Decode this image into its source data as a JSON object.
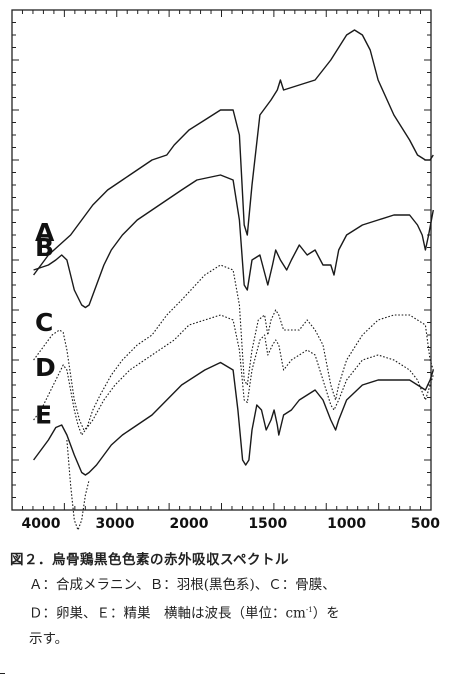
{
  "chart_data": {
    "type": "line",
    "xlabel": "",
    "ylabel": "",
    "xlim": [
      4100,
      430
    ],
    "x_ticks": [
      4000,
      3000,
      2000,
      1500,
      1000,
      500
    ],
    "x_tick_labels": [
      "4000",
      "3000",
      "2000",
      "1500",
      "1000",
      "500"
    ],
    "grid": false,
    "series": [
      {
        "name": "A",
        "style": "solid",
        "points": [
          [
            4100,
            47
          ],
          [
            3900,
            51
          ],
          [
            3750,
            53
          ],
          [
            3600,
            55
          ],
          [
            3450,
            58
          ],
          [
            3300,
            61
          ],
          [
            3100,
            64
          ],
          [
            2900,
            66
          ],
          [
            2700,
            68
          ],
          [
            2500,
            70
          ],
          [
            2300,
            71
          ],
          [
            2200,
            73
          ],
          [
            2000,
            76
          ],
          [
            1900,
            78
          ],
          [
            1800,
            80
          ],
          [
            1720,
            80
          ],
          [
            1680,
            75
          ],
          [
            1650,
            57
          ],
          [
            1630,
            55
          ],
          [
            1600,
            65
          ],
          [
            1550,
            79
          ],
          [
            1480,
            82
          ],
          [
            1440,
            84
          ],
          [
            1420,
            86
          ],
          [
            1400,
            84
          ],
          [
            1300,
            85
          ],
          [
            1200,
            86
          ],
          [
            1100,
            90
          ],
          [
            1000,
            95
          ],
          [
            950,
            96
          ],
          [
            900,
            95
          ],
          [
            850,
            92
          ],
          [
            800,
            86
          ],
          [
            700,
            79
          ],
          [
            600,
            74
          ],
          [
            550,
            71
          ],
          [
            500,
            70
          ],
          [
            470,
            70
          ],
          [
            450,
            71
          ]
        ]
      },
      {
        "name": "B",
        "style": "solid",
        "points": [
          [
            4100,
            48
          ],
          [
            3900,
            49
          ],
          [
            3800,
            50
          ],
          [
            3720,
            51
          ],
          [
            3650,
            50
          ],
          [
            3550,
            44
          ],
          [
            3450,
            41
          ],
          [
            3400,
            40.5
          ],
          [
            3350,
            41
          ],
          [
            3250,
            45
          ],
          [
            3150,
            49
          ],
          [
            3050,
            52
          ],
          [
            2900,
            55
          ],
          [
            2700,
            58
          ],
          [
            2500,
            60
          ],
          [
            2300,
            62
          ],
          [
            2100,
            64
          ],
          [
            1950,
            66
          ],
          [
            1800,
            67
          ],
          [
            1720,
            66
          ],
          [
            1680,
            58
          ],
          [
            1650,
            45
          ],
          [
            1630,
            44
          ],
          [
            1600,
            50
          ],
          [
            1550,
            51
          ],
          [
            1500,
            45
          ],
          [
            1470,
            49
          ],
          [
            1450,
            52
          ],
          [
            1420,
            50
          ],
          [
            1380,
            48
          ],
          [
            1350,
            50
          ],
          [
            1300,
            53
          ],
          [
            1250,
            51
          ],
          [
            1200,
            52
          ],
          [
            1150,
            49
          ],
          [
            1100,
            49
          ],
          [
            1080,
            47
          ],
          [
            1050,
            52
          ],
          [
            1000,
            55
          ],
          [
            900,
            57
          ],
          [
            800,
            58
          ],
          [
            700,
            59
          ],
          [
            600,
            59
          ],
          [
            550,
            57
          ],
          [
            520,
            55
          ],
          [
            500,
            52
          ],
          [
            480,
            55
          ],
          [
            450,
            60
          ]
        ]
      },
      {
        "name": "C",
        "style": "dotted",
        "points": [
          [
            4100,
            30
          ],
          [
            3950,
            33
          ],
          [
            3850,
            35
          ],
          [
            3750,
            36
          ],
          [
            3700,
            35.5
          ],
          [
            3650,
            32
          ],
          [
            3550,
            22
          ],
          [
            3480,
            18
          ],
          [
            3420,
            16
          ],
          [
            3380,
            16.5
          ],
          [
            3300,
            20
          ],
          [
            3200,
            23
          ],
          [
            3050,
            27
          ],
          [
            2900,
            30
          ],
          [
            2700,
            33
          ],
          [
            2500,
            35
          ],
          [
            2300,
            39
          ],
          [
            2100,
            42
          ],
          [
            1900,
            47
          ],
          [
            1800,
            49
          ],
          [
            1720,
            48
          ],
          [
            1680,
            41
          ],
          [
            1650,
            26
          ],
          [
            1630,
            25
          ],
          [
            1600,
            32
          ],
          [
            1560,
            38
          ],
          [
            1520,
            39
          ],
          [
            1500,
            35
          ],
          [
            1480,
            38
          ],
          [
            1450,
            40
          ],
          [
            1430,
            39
          ],
          [
            1400,
            36
          ],
          [
            1300,
            36
          ],
          [
            1250,
            38
          ],
          [
            1200,
            36
          ],
          [
            1150,
            33
          ],
          [
            1100,
            25
          ],
          [
            1070,
            22
          ],
          [
            1050,
            25
          ],
          [
            1000,
            30
          ],
          [
            900,
            35
          ],
          [
            800,
            38
          ],
          [
            700,
            39
          ],
          [
            600,
            39
          ],
          [
            500,
            37
          ],
          [
            470,
            30
          ],
          [
            450,
            28
          ]
        ]
      },
      {
        "name": "D",
        "style": "dotted",
        "points": [
          [
            4100,
            18
          ],
          [
            4000,
            20
          ],
          [
            3900,
            23
          ],
          [
            3800,
            26
          ],
          [
            3700,
            29
          ],
          [
            3650,
            28
          ],
          [
            3550,
            20
          ],
          [
            3500,
            17
          ],
          [
            3450,
            15
          ],
          [
            3400,
            16
          ],
          [
            3300,
            18
          ],
          [
            3150,
            22
          ],
          [
            3000,
            25
          ],
          [
            2800,
            28
          ],
          [
            2600,
            30
          ],
          [
            2400,
            32
          ],
          [
            2200,
            34
          ],
          [
            2000,
            37
          ],
          [
            1800,
            39
          ],
          [
            1720,
            38
          ],
          [
            1680,
            32
          ],
          [
            1650,
            22
          ],
          [
            1630,
            21.5
          ],
          [
            1600,
            28
          ],
          [
            1550,
            34
          ],
          [
            1520,
            35
          ],
          [
            1500,
            31
          ],
          [
            1470,
            33
          ],
          [
            1450,
            34
          ],
          [
            1430,
            33
          ],
          [
            1400,
            28
          ],
          [
            1350,
            30
          ],
          [
            1300,
            31
          ],
          [
            1250,
            32
          ],
          [
            1200,
            31
          ],
          [
            1150,
            26
          ],
          [
            1100,
            21
          ],
          [
            1080,
            20
          ],
          [
            1050,
            22
          ],
          [
            1000,
            26
          ],
          [
            900,
            30
          ],
          [
            800,
            31
          ],
          [
            700,
            30
          ],
          [
            600,
            28
          ],
          [
            550,
            26
          ],
          [
            500,
            22
          ],
          [
            480,
            24
          ],
          [
            450,
            27
          ]
        ]
      },
      {
        "name": "E",
        "style": "solid",
        "points": [
          [
            4100,
            10
          ],
          [
            4000,
            12
          ],
          [
            3900,
            14
          ],
          [
            3800,
            16.5
          ],
          [
            3720,
            17
          ],
          [
            3650,
            15
          ],
          [
            3550,
            11
          ],
          [
            3450,
            7.5
          ],
          [
            3400,
            7
          ],
          [
            3350,
            7.5
          ],
          [
            3250,
            9
          ],
          [
            3150,
            11
          ],
          [
            3050,
            13
          ],
          [
            2900,
            15
          ],
          [
            2700,
            17
          ],
          [
            2500,
            19
          ],
          [
            2300,
            22
          ],
          [
            2100,
            25
          ],
          [
            1900,
            28
          ],
          [
            1800,
            29.5
          ],
          [
            1720,
            28
          ],
          [
            1690,
            20
          ],
          [
            1660,
            10
          ],
          [
            1640,
            9
          ],
          [
            1620,
            10
          ],
          [
            1600,
            16
          ],
          [
            1570,
            21
          ],
          [
            1540,
            20
          ],
          [
            1510,
            16
          ],
          [
            1480,
            18
          ],
          [
            1460,
            20
          ],
          [
            1440,
            17
          ],
          [
            1430,
            15
          ],
          [
            1400,
            19
          ],
          [
            1350,
            20
          ],
          [
            1300,
            22
          ],
          [
            1250,
            23
          ],
          [
            1200,
            24
          ],
          [
            1150,
            22
          ],
          [
            1100,
            18
          ],
          [
            1070,
            16
          ],
          [
            1050,
            18
          ],
          [
            1000,
            22
          ],
          [
            900,
            25
          ],
          [
            800,
            26
          ],
          [
            700,
            26
          ],
          [
            600,
            26
          ],
          [
            550,
            25
          ],
          [
            500,
            24
          ],
          [
            470,
            26
          ],
          [
            450,
            28
          ]
        ]
      },
      {
        "name": "",
        "style": "dotted",
        "points": [
          [
            3650,
            14
          ],
          [
            3600,
            5
          ],
          [
            3550,
            -2
          ],
          [
            3500,
            -4
          ],
          [
            3450,
            -2
          ],
          [
            3400,
            3
          ],
          [
            3350,
            6
          ]
        ]
      }
    ]
  },
  "caption": {
    "title": "図２．烏骨鶏黒色色素の赤外吸収スペクトル",
    "line2": "Ａ：合成メラニン、Ｂ：羽根(黒色系)、Ｃ：骨膜、",
    "line3_pre": "Ｄ：卵巣、Ｅ：精巣　横軸は波長（単位：cm",
    "line3_sup": "-1",
    "line3_post": "）を",
    "line4": "示す。"
  }
}
